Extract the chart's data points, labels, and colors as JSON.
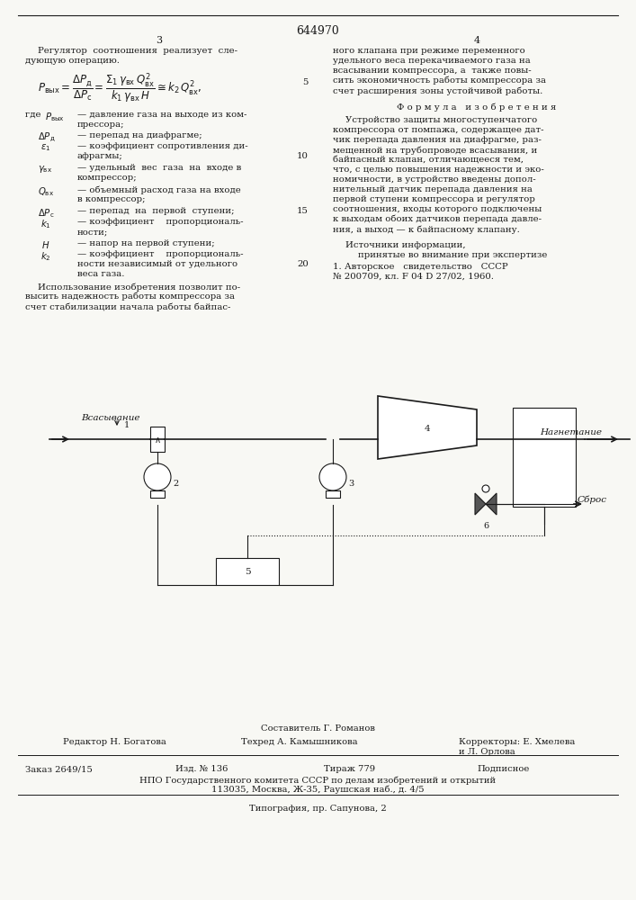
{
  "patent_number": "644970",
  "page_left": "3",
  "page_right": "4",
  "background_color": "#f8f8f4",
  "text_color": "#1a1a1a",
  "footer_compiler": "Составитель Г. Романов",
  "footer_editor": "Редактор Н. Богатова",
  "footer_tech": "Техред А. Камышникова",
  "footer_corrector1": "Корректоры: Е. Хмелева",
  "footer_corrector2": "и Л. Орлова",
  "footer_order": "Заказ 2649/15",
  "footer_izd": "Изд. № 136",
  "footer_tirazh": "Тираж 779",
  "footer_podpisnoe": "Подписное",
  "footer_npo": "НПО Государственного комитета СССР по делам изобретений и открытий",
  "footer_address": "113035, Москва, Ж-35, Раушская наб., д. 4/5",
  "footer_typografia": "Типография, пр. Сапунова, 2"
}
